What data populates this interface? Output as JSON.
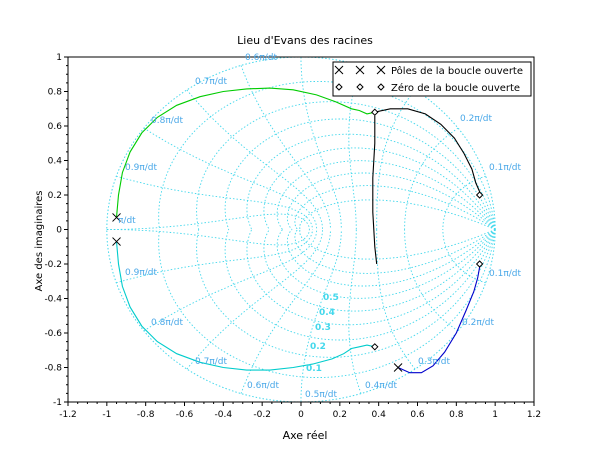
{
  "chart_data": {
    "type": "line",
    "title": "Lieu d'Evans des racines",
    "xlabel": "Axe réel",
    "ylabel": "Axe des imaginaires",
    "xlim": [
      -1.2,
      1.2
    ],
    "ylim": [
      -1,
      1
    ],
    "x_ticks": [
      "-1.2",
      "-1",
      "-0.8",
      "-0.6",
      "-0.4",
      "-0.2",
      "0",
      "0.2",
      "0.4",
      "0.6",
      "0.8",
      "1",
      "1.2"
    ],
    "y_ticks": [
      "1",
      "0.8",
      "0.6",
      "0.4",
      "0.2",
      "0",
      "-0.2",
      "-0.4",
      "-0.6",
      "-0.8",
      "-1"
    ],
    "grid_style": "dotted",
    "grid_color": "#44d8ec",
    "grid_label_color": "#4aa8e8",
    "legend": {
      "placement": "top-right",
      "entries": [
        {
          "label": "Pôles de la boucle ouverte",
          "marker": "x"
        },
        {
          "label": "Zéro de la boucle ouverte",
          "marker": "diamond"
        }
      ]
    },
    "damping_labels": [
      "0.1",
      "0.2",
      "0.3",
      "0.4",
      "0.5"
    ],
    "frequency_labels_top": [
      "0.9π/dt",
      "0.8π/dt",
      "0.7π/dt",
      "0.6π/dt",
      "0.2π/dt",
      "0.1π/dt"
    ],
    "frequency_labels_bottom": [
      "0.9π/dt",
      "0.8π/dt",
      "0.7π/dt",
      "0.6π/dt",
      "0.5π/dt",
      "0.4π/dt",
      "0.3π/dt",
      "0.2π/dt",
      "0.1π/dt"
    ],
    "frequency_label_left": "π/dt",
    "poles": [
      {
        "x": -0.95,
        "y": 0.07
      },
      {
        "x": -0.95,
        "y": -0.07
      },
      {
        "x": 0.5,
        "y": -0.8
      }
    ],
    "zeros": [
      {
        "x": 0.38,
        "y": 0.68
      },
      {
        "x": 0.38,
        "y": -0.68
      },
      {
        "x": 0.92,
        "y": 0.2
      },
      {
        "x": 0.92,
        "y": -0.2
      }
    ],
    "series": [
      {
        "color": "#00cc00",
        "x": [
          -0.95,
          -0.94,
          -0.92,
          -0.88,
          -0.82,
          -0.74,
          -0.64,
          -0.52,
          -0.4,
          -0.28,
          -0.16,
          -0.04,
          0.08,
          0.18,
          0.26,
          0.3,
          0.34,
          0.38
        ],
        "y": [
          0.07,
          0.2,
          0.33,
          0.45,
          0.56,
          0.65,
          0.72,
          0.77,
          0.8,
          0.815,
          0.82,
          0.81,
          0.78,
          0.74,
          0.7,
          0.69,
          0.67,
          0.68
        ]
      },
      {
        "color": "#00cccc",
        "x": [
          -0.95,
          -0.94,
          -0.92,
          -0.88,
          -0.82,
          -0.74,
          -0.64,
          -0.52,
          -0.4,
          -0.28,
          -0.16,
          -0.04,
          0.06,
          0.16,
          0.22,
          0.26,
          0.3,
          0.34,
          0.38
        ],
        "y": [
          -0.07,
          -0.2,
          -0.33,
          -0.45,
          -0.56,
          -0.65,
          -0.72,
          -0.77,
          -0.8,
          -0.815,
          -0.815,
          -0.8,
          -0.78,
          -0.75,
          -0.72,
          -0.69,
          -0.68,
          -0.67,
          -0.68
        ]
      },
      {
        "color": "#000000",
        "x": [
          0.38,
          0.46,
          0.55,
          0.64,
          0.72,
          0.79,
          0.84,
          0.88,
          0.9,
          0.92,
          0.92
        ],
        "y": [
          0.68,
          0.7,
          0.7,
          0.67,
          0.61,
          0.53,
          0.44,
          0.35,
          0.27,
          0.22,
          0.2
        ]
      },
      {
        "color": "#0000cc",
        "x": [
          0.5,
          0.56,
          0.62,
          0.68,
          0.74,
          0.8,
          0.85,
          0.89,
          0.91,
          0.92,
          0.92
        ],
        "y": [
          -0.8,
          -0.83,
          -0.83,
          -0.79,
          -0.71,
          -0.6,
          -0.47,
          -0.36,
          -0.28,
          -0.22,
          -0.2
        ]
      },
      {
        "color": "#000000",
        "x": [
          0.38,
          0.38,
          0.37,
          0.37,
          0.38,
          0.39
        ],
        "y": [
          0.66,
          0.5,
          0.3,
          0.1,
          -0.1,
          -0.2
        ]
      }
    ]
  }
}
